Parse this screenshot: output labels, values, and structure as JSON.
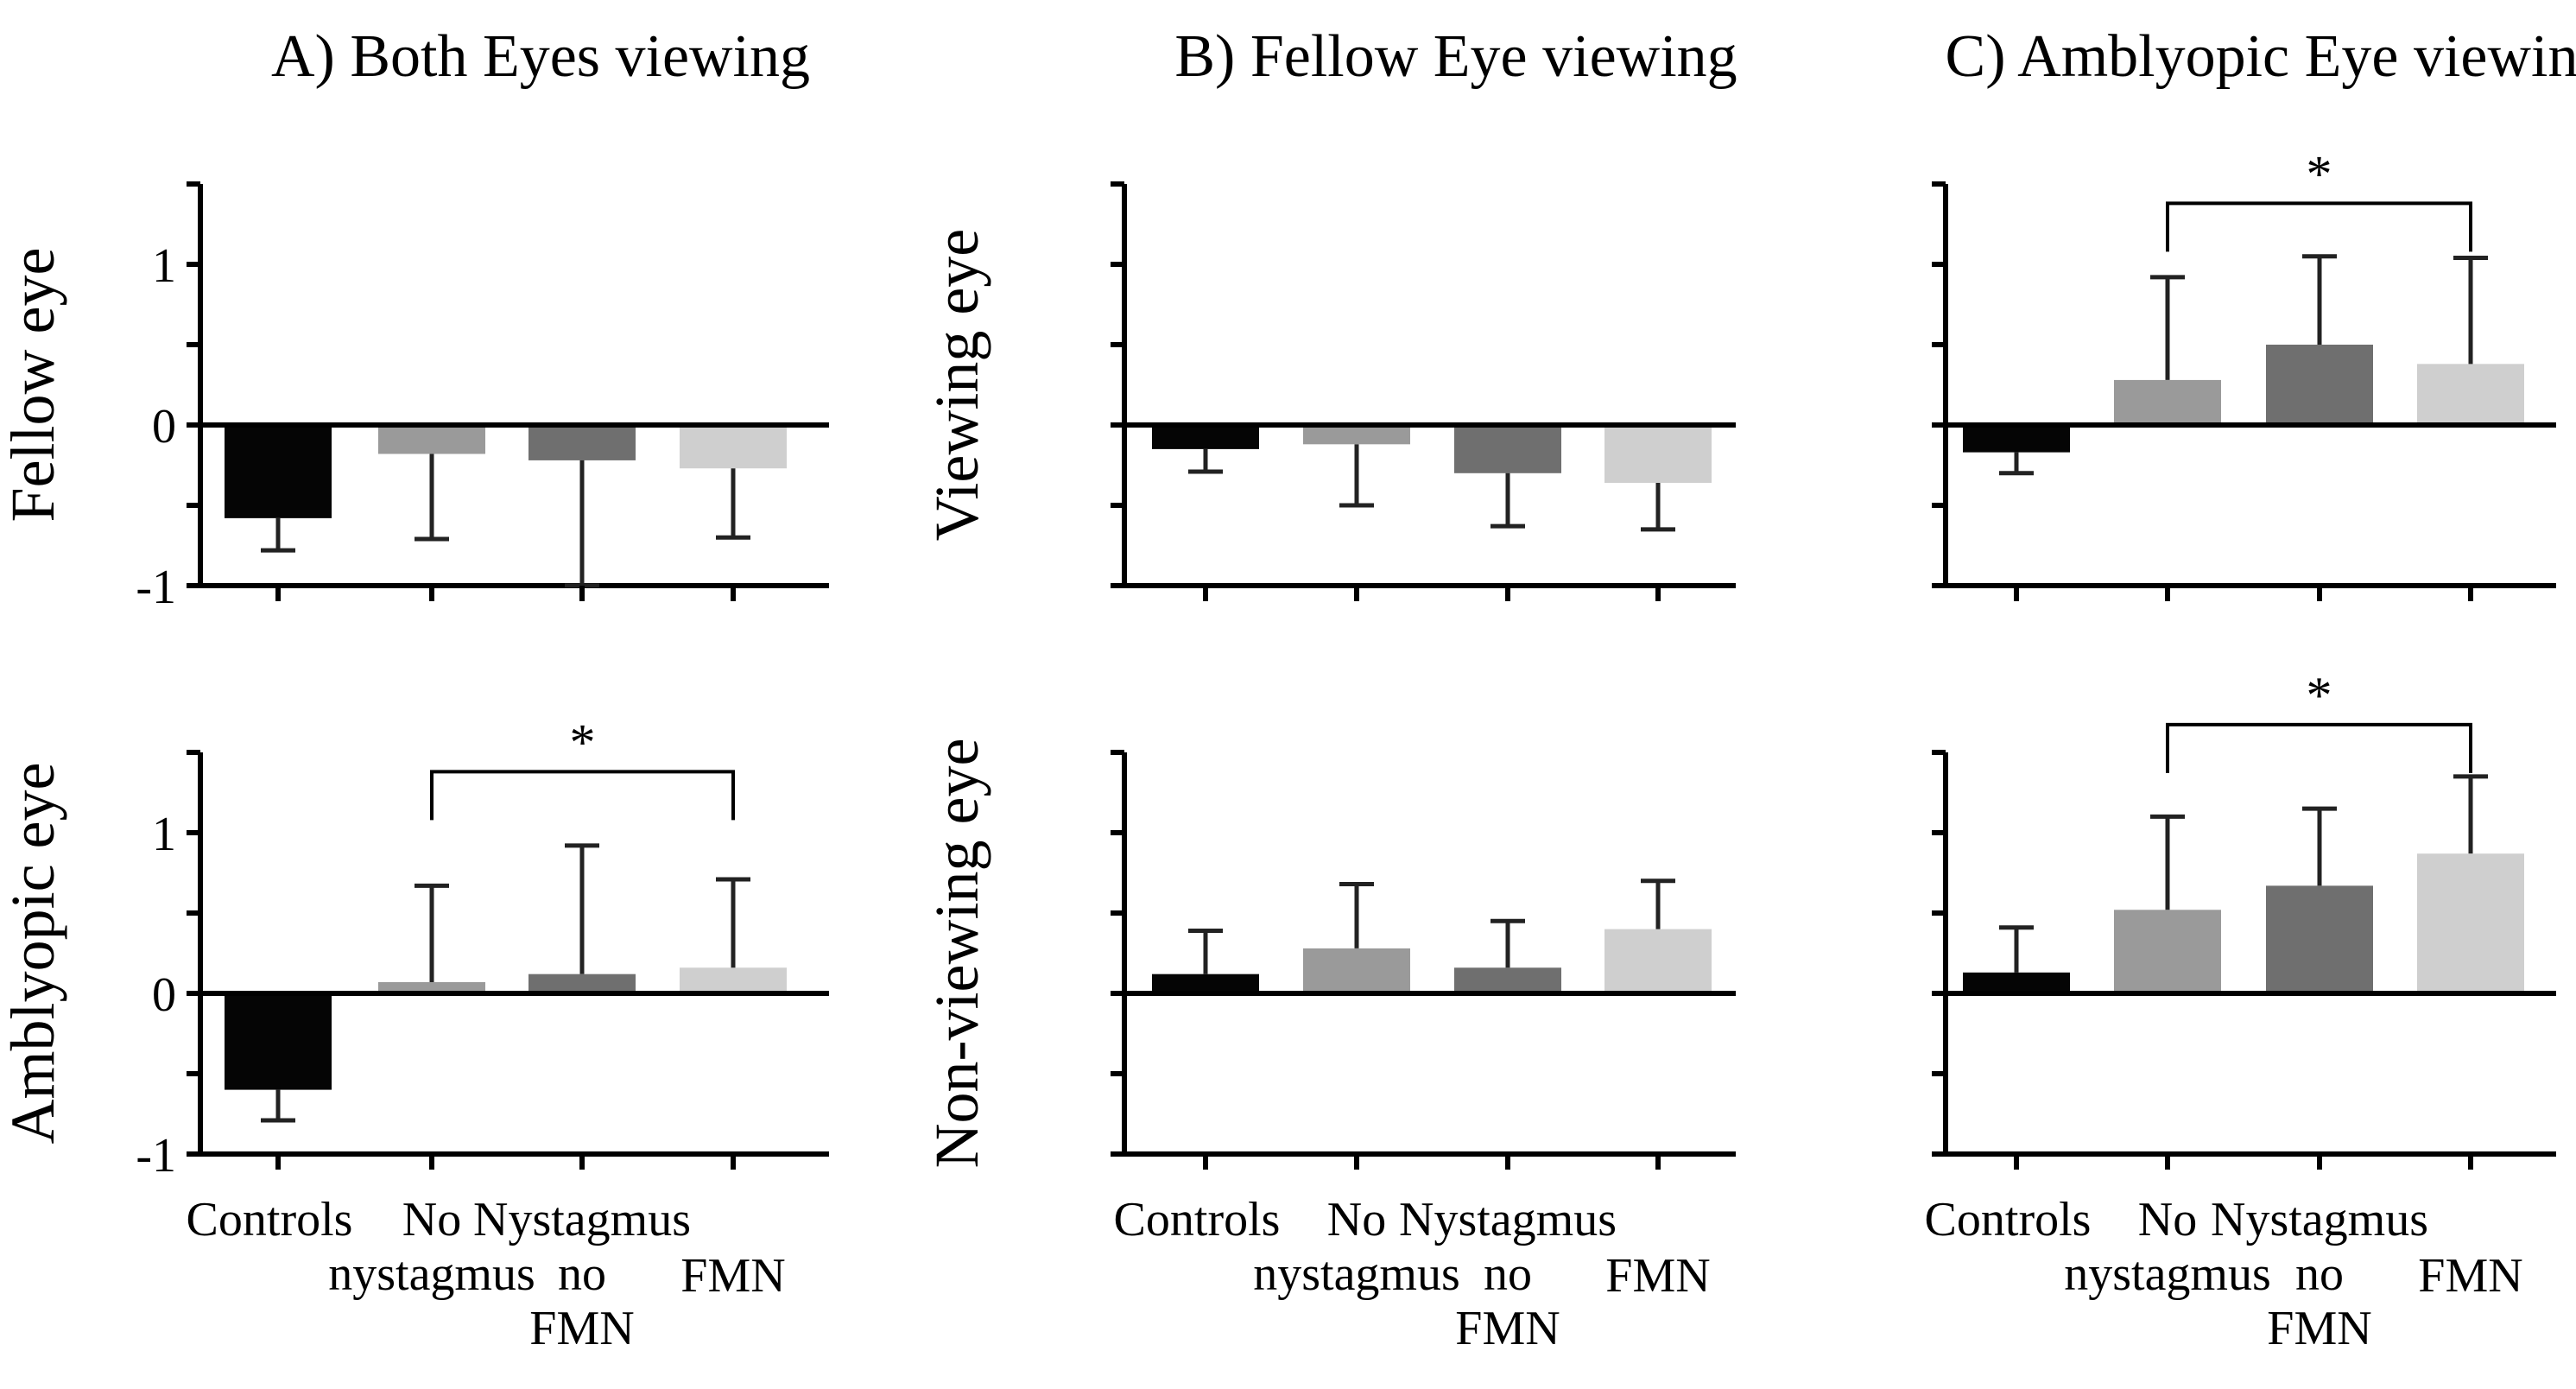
{
  "chart_data": [
    {
      "type": "bar",
      "id": "A-top",
      "title": "A) Both Eyes viewing",
      "ylabel": "Fellow eye",
      "categories": [
        "Controls",
        "No nystagmus",
        "Nystagmus no FMN",
        "FMN"
      ],
      "values": [
        -0.58,
        -0.18,
        -0.22,
        -0.27
      ],
      "error": [
        0.2,
        0.53,
        0.78,
        0.43
      ],
      "colors": [
        "#050505",
        "#9a9a9a",
        "#6f6f6f",
        "#cfcfcf"
      ],
      "ylim": [
        -1,
        1.5
      ],
      "yticks": [
        -1,
        -0.5,
        0,
        0.5,
        1,
        1.5
      ],
      "ytick_labels": [
        "-1",
        "",
        "0",
        "",
        "1",
        ""
      ],
      "significance": null
    },
    {
      "type": "bar",
      "id": "B-top",
      "title": "B) Fellow Eye viewing",
      "ylabel": "Viewing eye",
      "categories": [
        "Controls",
        "No nystagmus",
        "Nystagmus no FMN",
        "FMN"
      ],
      "values": [
        -0.15,
        -0.12,
        -0.3,
        -0.36
      ],
      "error": [
        0.14,
        0.38,
        0.33,
        0.29
      ],
      "colors": [
        "#050505",
        "#9a9a9a",
        "#6f6f6f",
        "#cfcfcf"
      ],
      "ylim": [
        -1,
        1.5
      ],
      "yticks": [
        -1,
        -0.5,
        0,
        0.5,
        1,
        1.5
      ],
      "ytick_labels": [
        "",
        "",
        "",
        "",
        "",
        ""
      ],
      "significance": null
    },
    {
      "type": "bar",
      "id": "C-top",
      "title": "C) Amblyopic Eye viewing",
      "ylabel": "",
      "categories": [
        "Controls",
        "No nystagmus",
        "Nystagmus no FMN",
        "FMN"
      ],
      "values": [
        -0.17,
        0.28,
        0.5,
        0.38
      ],
      "error": [
        0.13,
        0.64,
        0.55,
        0.66
      ],
      "colors": [
        "#050505",
        "#9a9a9a",
        "#6f6f6f",
        "#cfcfcf"
      ],
      "ylim": [
        -1,
        1.5
      ],
      "yticks": [
        -1,
        -0.5,
        0,
        0.5,
        1,
        1.5
      ],
      "ytick_labels": [
        "",
        "",
        "",
        "",
        "",
        ""
      ],
      "significance": {
        "from": 1,
        "to": 3,
        "label": "*"
      }
    },
    {
      "type": "bar",
      "id": "A-bottom",
      "title": "",
      "ylabel": "Amblyopic eye",
      "categories": [
        "Controls",
        "No nystagmus",
        "Nystagmus no FMN",
        "FMN"
      ],
      "values": [
        -0.6,
        0.07,
        0.12,
        0.16
      ],
      "error": [
        0.19,
        0.6,
        0.8,
        0.55
      ],
      "colors": [
        "#050505",
        "#9a9a9a",
        "#6f6f6f",
        "#cfcfcf"
      ],
      "ylim": [
        -1,
        1.5
      ],
      "yticks": [
        -1,
        -0.5,
        0,
        0.5,
        1,
        1.5
      ],
      "ytick_labels": [
        "-1",
        "",
        "0",
        "",
        "1",
        ""
      ],
      "significance": {
        "from": 1,
        "to": 3,
        "label": "*"
      }
    },
    {
      "type": "bar",
      "id": "B-bottom",
      "title": "",
      "ylabel": "Non-viewing eye",
      "categories": [
        "Controls",
        "No nystagmus",
        "Nystagmus no FMN",
        "FMN"
      ],
      "values": [
        0.12,
        0.28,
        0.16,
        0.4
      ],
      "error": [
        0.27,
        0.4,
        0.29,
        0.3
      ],
      "colors": [
        "#050505",
        "#9a9a9a",
        "#6f6f6f",
        "#cfcfcf"
      ],
      "ylim": [
        -1,
        1.5
      ],
      "yticks": [
        -1,
        -0.5,
        0,
        0.5,
        1,
        1.5
      ],
      "ytick_labels": [
        "",
        "",
        "",
        "",
        "",
        ""
      ],
      "significance": null
    },
    {
      "type": "bar",
      "id": "C-bottom",
      "title": "",
      "ylabel": "",
      "categories": [
        "Controls",
        "No nystagmus",
        "Nystagmus no FMN",
        "FMN"
      ],
      "values": [
        0.13,
        0.52,
        0.67,
        0.87
      ],
      "error": [
        0.28,
        0.58,
        0.48,
        0.48
      ],
      "colors": [
        "#050505",
        "#9a9a9a",
        "#6f6f6f",
        "#cfcfcf"
      ],
      "ylim": [
        -1,
        1.5
      ],
      "yticks": [
        -1,
        -0.5,
        0,
        0.5,
        1,
        1.5
      ],
      "ytick_labels": [
        "",
        "",
        "",
        "",
        "",
        ""
      ],
      "significance": {
        "from": 1,
        "to": 3,
        "label": "*"
      }
    }
  ],
  "category_label_lines": [
    [
      "Controls"
    ],
    [
      "No",
      "nystagmus"
    ],
    [
      "Nystagmus",
      "no",
      "FMN"
    ],
    [
      "FMN"
    ]
  ]
}
